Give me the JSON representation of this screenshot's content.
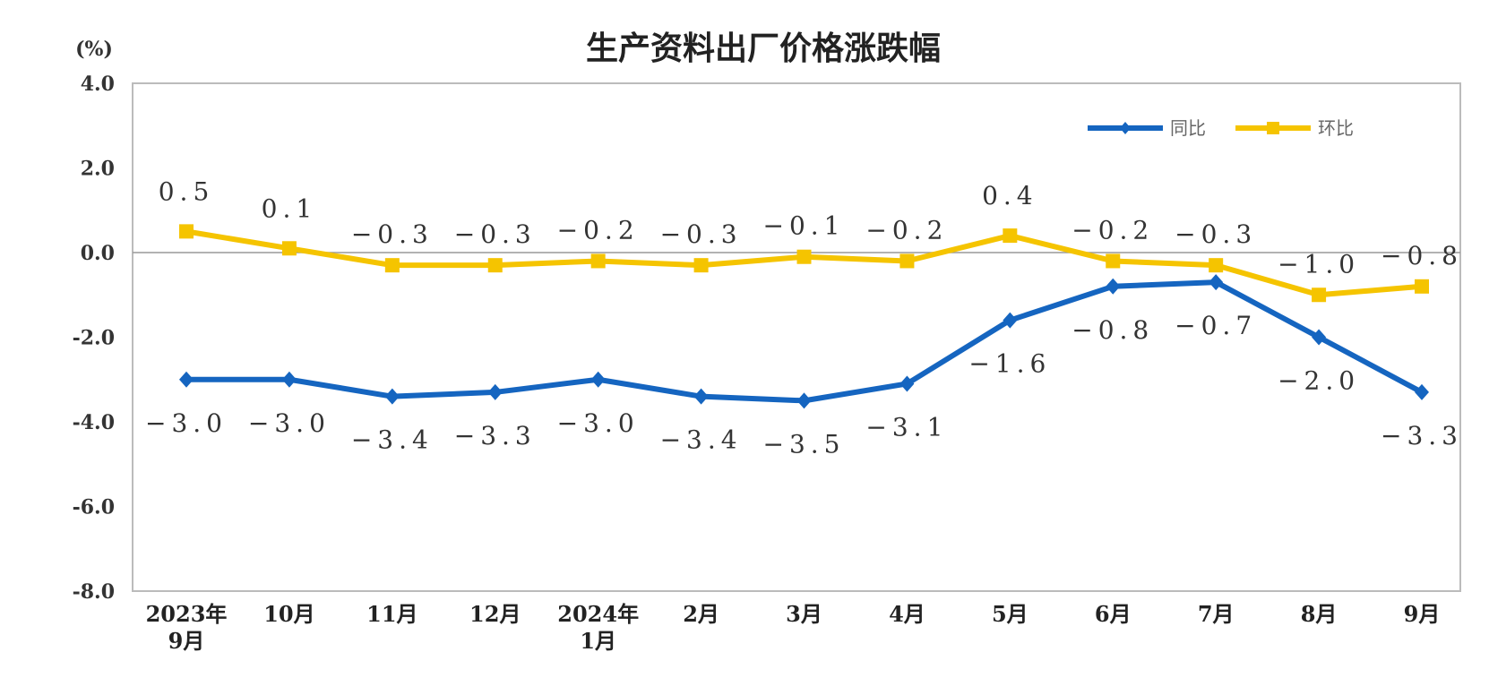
{
  "chart_data": {
    "type": "line",
    "title": "生产资料出厂价格涨跌幅",
    "ylabel": "(%)",
    "ylim": [
      -8.0,
      4.0
    ],
    "yticks": [
      "4.0",
      "2.0",
      "0.0",
      "-2.0",
      "-4.0",
      "-6.0",
      "-8.0"
    ],
    "grid": false,
    "legend_position": "top-right",
    "categories": [
      [
        "2023年",
        "9月"
      ],
      [
        "10月"
      ],
      [
        "11月"
      ],
      [
        "12月"
      ],
      [
        "2024年",
        "1月"
      ],
      [
        "2月"
      ],
      [
        "3月"
      ],
      [
        "4月"
      ],
      [
        "5月"
      ],
      [
        "6月"
      ],
      [
        "7月"
      ],
      [
        "8月"
      ],
      [
        "9月"
      ]
    ],
    "series": [
      {
        "name": "同比",
        "color": "#1565c0",
        "marker": "diamond",
        "values": [
          -3.0,
          -3.0,
          -3.4,
          -3.3,
          -3.0,
          -3.4,
          -3.5,
          -3.1,
          -1.6,
          -0.8,
          -0.7,
          -2.0,
          -3.3
        ],
        "labels": [
          "-3.0",
          "-3.0",
          "-3.4",
          "-3.3",
          "-3.0",
          "-3.4",
          "-3.5",
          "-3.1",
          "-1.6",
          "-0.8",
          "-0.7",
          "-2.0",
          "-3.3"
        ]
      },
      {
        "name": "环比",
        "color": "#f5c400",
        "marker": "square",
        "values": [
          0.5,
          0.1,
          -0.3,
          -0.3,
          -0.2,
          -0.3,
          -0.1,
          -0.2,
          0.4,
          -0.2,
          -0.3,
          -1.0,
          -0.8
        ],
        "labels": [
          "0.5",
          "0.1",
          "-0.3",
          "-0.3",
          "-0.2",
          "-0.3",
          "-0.1",
          "-0.2",
          "0.4",
          "-0.2",
          "-0.3",
          "-1.0",
          "-0.8"
        ]
      }
    ]
  }
}
